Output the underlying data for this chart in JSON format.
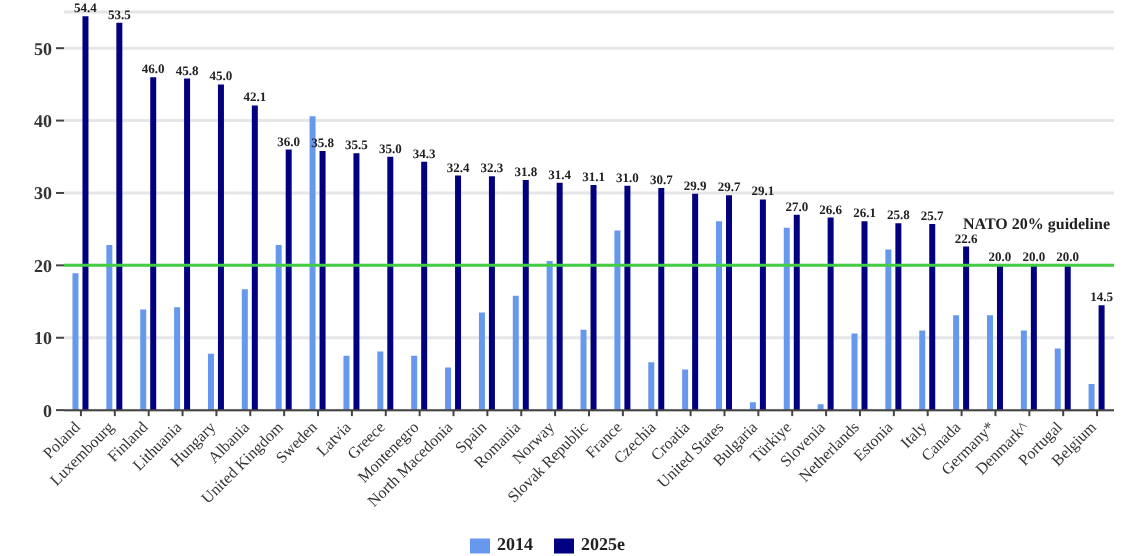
{
  "chart_data": {
    "type": "bar",
    "categories": [
      "Poland",
      "Luxembourg",
      "Finland",
      "Lithuania",
      "Hungary",
      "Albania",
      "United Kingdom",
      "Sweden",
      "Latvia",
      "Greece",
      "Montenegro",
      "North Macedonia",
      "Spain",
      "Romania",
      "Norway",
      "Slovak Republic",
      "France",
      "Czechia",
      "Croatia",
      "United States",
      "Bulgaria",
      "Türkiye",
      "Slovenia",
      "Netherlands",
      "Estonia",
      "Italy",
      "Canada",
      "Germany*",
      "Denmark^",
      "Portugal",
      "Belgium"
    ],
    "series": [
      {
        "name": "2014",
        "color": "#6699ee",
        "values": [
          18.9,
          22.8,
          13.9,
          14.2,
          7.8,
          16.7,
          22.8,
          40.6,
          7.5,
          8.1,
          7.5,
          5.9,
          13.5,
          15.8,
          20.6,
          11.1,
          24.8,
          6.6,
          5.6,
          26.1,
          1.1,
          25.2,
          0.8,
          10.6,
          22.2,
          11.0,
          13.1,
          13.1,
          11.0,
          8.5,
          3.6
        ]
      },
      {
        "name": "2025e",
        "color": "#000080",
        "values": [
          54.4,
          53.5,
          46.0,
          45.8,
          45.0,
          42.1,
          36.0,
          35.8,
          35.5,
          35.0,
          34.3,
          32.4,
          32.3,
          31.8,
          31.4,
          31.1,
          31.0,
          30.7,
          29.9,
          29.7,
          29.1,
          27.0,
          26.6,
          26.1,
          25.8,
          25.7,
          22.6,
          20.0,
          20.0,
          20.0,
          14.5
        ],
        "value_labels": [
          "54.4",
          "53.5",
          "46.0",
          "45.8",
          "45.0",
          "42.1",
          "36.0",
          "35.8",
          "35.5",
          "35.0",
          "34.3",
          "32.4",
          "32.3",
          "31.8",
          "31.4",
          "31.1",
          "31.0",
          "30.7",
          "29.9",
          "29.7",
          "29.1",
          "27.0",
          "26.6",
          "26.1",
          "25.8",
          "25.7",
          "22.6",
          "20.0",
          "20.0",
          "20.0",
          "14.5"
        ]
      }
    ],
    "ylim": [
      0,
      55
    ],
    "yticks": [
      0,
      10,
      20,
      30,
      40,
      50
    ],
    "grid": "y",
    "legend": "bottom",
    "ref_lines": [
      {
        "axis": "y",
        "value": 20,
        "label": "NATO 20% guideline",
        "color": "#44cc44"
      }
    ]
  }
}
